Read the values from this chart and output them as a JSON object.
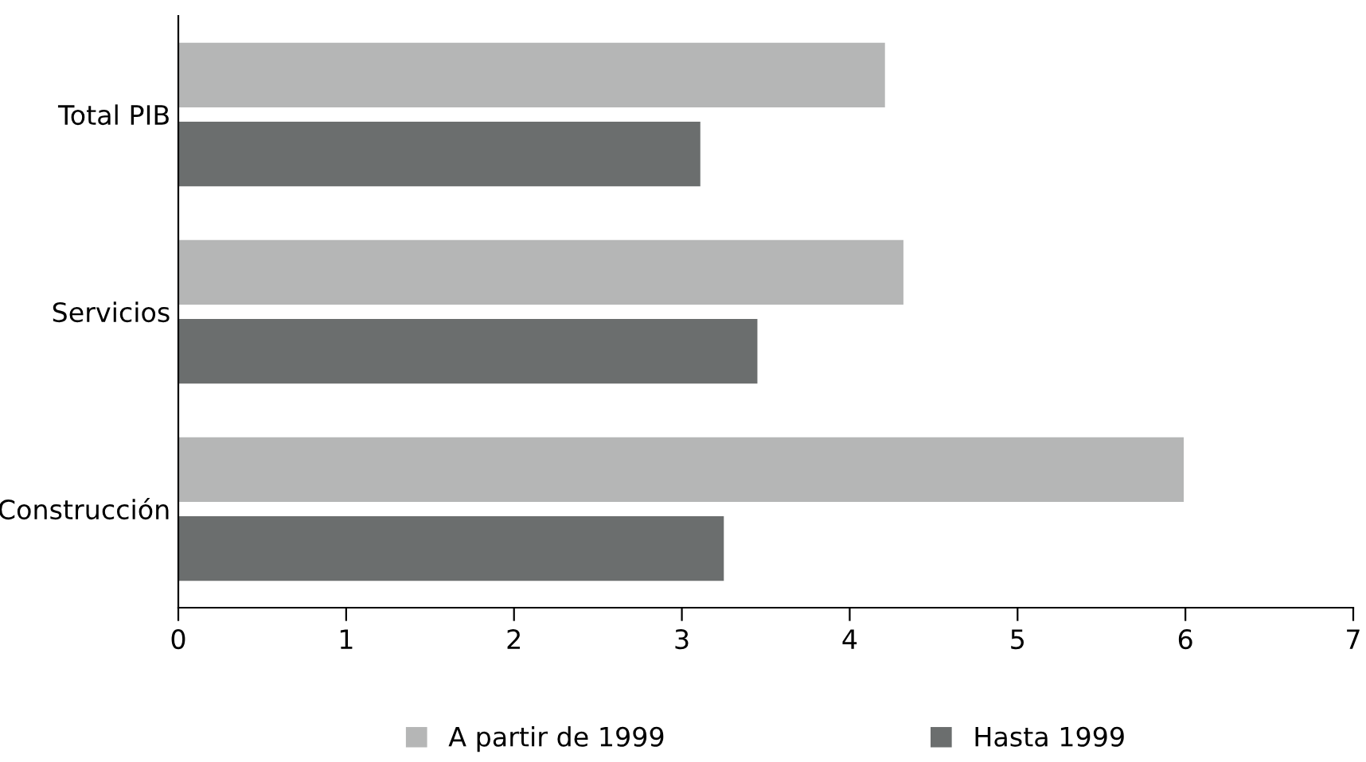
{
  "chart_data": {
    "type": "bar",
    "orientation": "horizontal",
    "categories": [
      "Total PIB",
      "Servicios",
      "Construcción"
    ],
    "series": [
      {
        "name": "A partir de 1999",
        "color": "#b5b6b6",
        "values": [
          4.21,
          4.32,
          5.99
        ]
      },
      {
        "name": "Hasta 1999",
        "color": "#6b6e6e",
        "values": [
          3.11,
          3.45,
          3.25
        ]
      }
    ],
    "xlim": [
      0,
      7
    ],
    "xticks": [
      0,
      1,
      2,
      3,
      4,
      5,
      6,
      7
    ],
    "grid": false,
    "legend": "bottom"
  }
}
